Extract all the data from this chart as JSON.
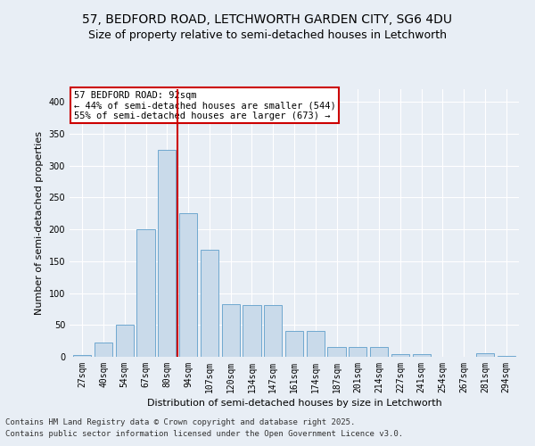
{
  "title1": "57, BEDFORD ROAD, LETCHWORTH GARDEN CITY, SG6 4DU",
  "title2": "Size of property relative to semi-detached houses in Letchworth",
  "xlabel": "Distribution of semi-detached houses by size in Letchworth",
  "ylabel": "Number of semi-detached properties",
  "categories": [
    "27sqm",
    "40sqm",
    "54sqm",
    "67sqm",
    "80sqm",
    "94sqm",
    "107sqm",
    "120sqm",
    "134sqm",
    "147sqm",
    "161sqm",
    "174sqm",
    "187sqm",
    "201sqm",
    "214sqm",
    "227sqm",
    "241sqm",
    "254sqm",
    "267sqm",
    "281sqm",
    "294sqm"
  ],
  "values": [
    3,
    22,
    50,
    200,
    325,
    225,
    168,
    82,
    81,
    81,
    40,
    40,
    15,
    15,
    15,
    4,
    4,
    0,
    0,
    5,
    1
  ],
  "bar_color": "#c9daea",
  "bar_edge_color": "#6fa8d0",
  "vline_color": "#cc0000",
  "annotation_title": "57 BEDFORD ROAD: 92sqm",
  "annotation_line1": "← 44% of semi-detached houses are smaller (544)",
  "annotation_line2": "55% of semi-detached houses are larger (673) →",
  "annotation_box_facecolor": "#ffffff",
  "annotation_box_edgecolor": "#cc0000",
  "ylim": [
    0,
    420
  ],
  "yticks": [
    0,
    50,
    100,
    150,
    200,
    250,
    300,
    350,
    400
  ],
  "footer1": "Contains HM Land Registry data © Crown copyright and database right 2025.",
  "footer2": "Contains public sector information licensed under the Open Government Licence v3.0.",
  "bg_color": "#e8eef5",
  "plot_bg_color": "#e8eef5",
  "title_fontsize": 10,
  "subtitle_fontsize": 9,
  "tick_fontsize": 7,
  "axis_label_fontsize": 8,
  "footer_fontsize": 6.5,
  "annotation_fontsize": 7.5,
  "vline_pos": 4.5
}
